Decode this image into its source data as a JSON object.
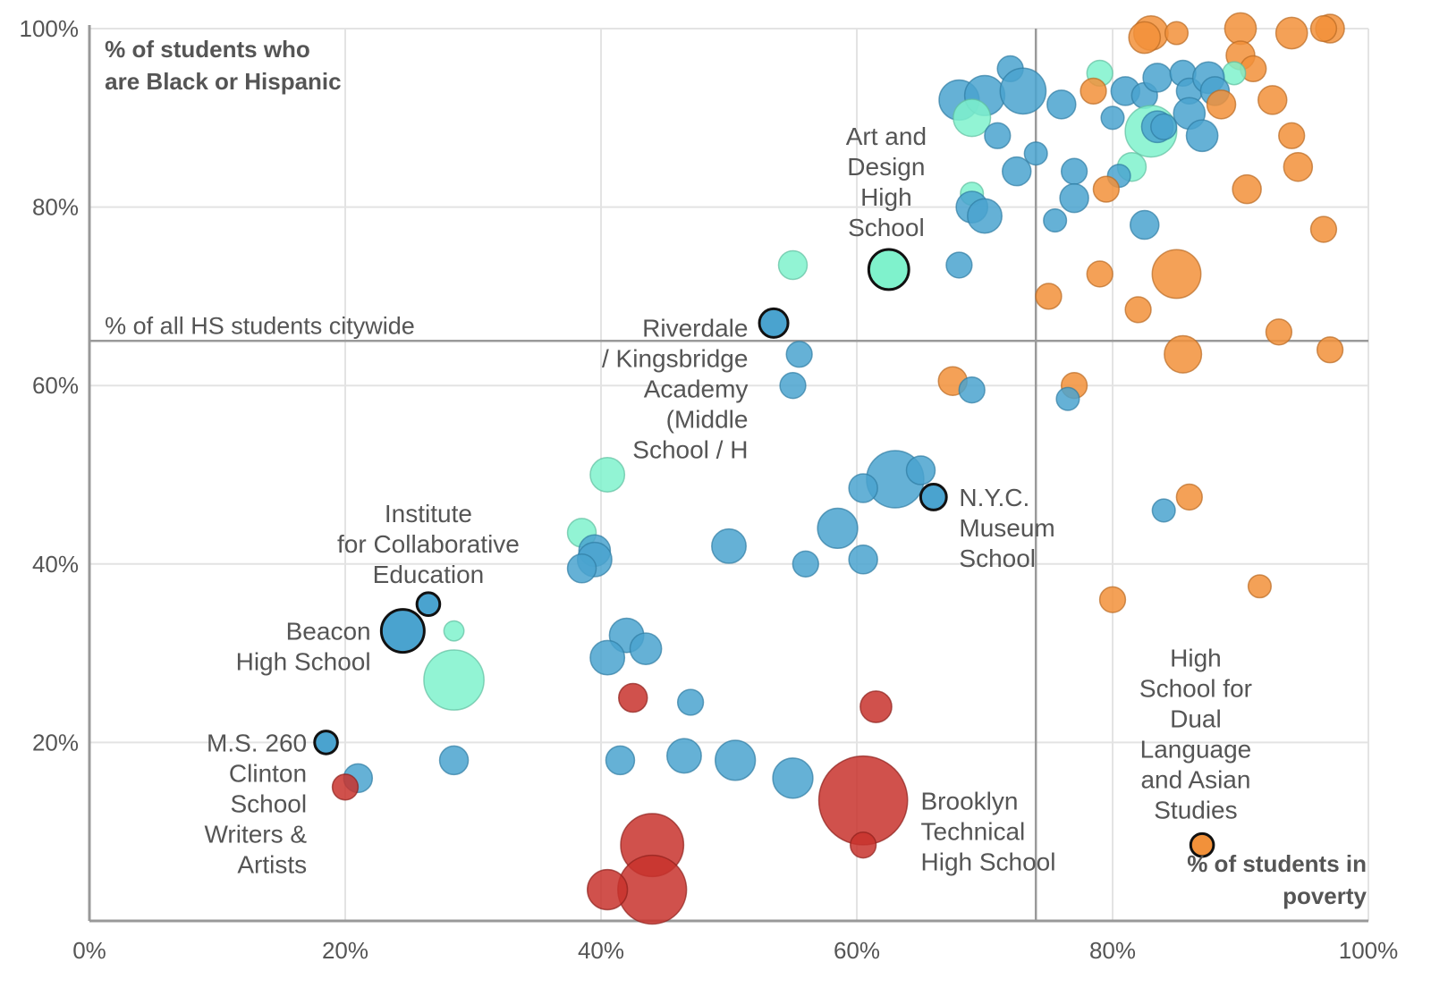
{
  "chart_data": {
    "type": "scatter",
    "xlabel": [
      "% of students in",
      "poverty"
    ],
    "ylabel": [
      "% of students who",
      "are Black or Hispanic"
    ],
    "xlim": [
      0,
      100
    ],
    "ylim": [
      0,
      100
    ],
    "x_ticks": [
      "0%",
      "20%",
      "40%",
      "60%",
      "80%",
      "100%"
    ],
    "y_ticks": [
      "20%",
      "40%",
      "60%",
      "80%",
      "100%"
    ],
    "grid": true,
    "colors": {
      "red": "#c8322d",
      "blue": "#4aa3cf",
      "mint": "#7ff2cc",
      "orange": "#f2913a"
    },
    "reference_lines": [
      {
        "orientation": "horizontal",
        "value": 65,
        "label": "% of all HS students citywide"
      },
      {
        "orientation": "vertical",
        "value": 74,
        "label": ""
      }
    ],
    "points": [
      {
        "x": 97,
        "y": 100,
        "size": 1,
        "color": "orange"
      },
      {
        "x": 90,
        "y": 100,
        "size": 1.1,
        "color": "orange"
      },
      {
        "x": 94,
        "y": 99.5,
        "size": 1.1,
        "color": "orange"
      },
      {
        "x": 83,
        "y": 99.5,
        "size": 1.2,
        "color": "orange"
      },
      {
        "x": 82.5,
        "y": 99,
        "size": 1.1,
        "color": "orange"
      },
      {
        "x": 85,
        "y": 99.5,
        "size": 0.8,
        "color": "orange"
      },
      {
        "x": 96.5,
        "y": 100,
        "size": 0.9,
        "color": "orange"
      },
      {
        "x": 90,
        "y": 97,
        "size": 1,
        "color": "orange"
      },
      {
        "x": 91,
        "y": 95.5,
        "size": 0.9,
        "color": "orange"
      },
      {
        "x": 79,
        "y": 95,
        "size": 0.9,
        "color": "mint"
      },
      {
        "x": 89.5,
        "y": 95,
        "size": 0.8,
        "color": "mint"
      },
      {
        "x": 72,
        "y": 95.5,
        "size": 0.9,
        "color": "blue"
      },
      {
        "x": 68,
        "y": 92,
        "size": 1.4,
        "color": "blue"
      },
      {
        "x": 70,
        "y": 92.5,
        "size": 1.4,
        "color": "blue"
      },
      {
        "x": 73,
        "y": 93,
        "size": 1.6,
        "color": "blue"
      },
      {
        "x": 76,
        "y": 91.5,
        "size": 1,
        "color": "blue"
      },
      {
        "x": 78.5,
        "y": 93,
        "size": 0.9,
        "color": "orange"
      },
      {
        "x": 81,
        "y": 93,
        "size": 1,
        "color": "blue"
      },
      {
        "x": 82.5,
        "y": 92.5,
        "size": 0.9,
        "color": "blue"
      },
      {
        "x": 83.5,
        "y": 94.5,
        "size": 1,
        "color": "blue"
      },
      {
        "x": 85.5,
        "y": 95,
        "size": 0.9,
        "color": "blue"
      },
      {
        "x": 86,
        "y": 93,
        "size": 0.9,
        "color": "blue"
      },
      {
        "x": 87.5,
        "y": 94.5,
        "size": 1.1,
        "color": "blue"
      },
      {
        "x": 88,
        "y": 93,
        "size": 1,
        "color": "blue"
      },
      {
        "x": 88.5,
        "y": 91.5,
        "size": 1,
        "color": "orange"
      },
      {
        "x": 92.5,
        "y": 92,
        "size": 1,
        "color": "orange"
      },
      {
        "x": 69,
        "y": 90,
        "size": 1.3,
        "color": "mint"
      },
      {
        "x": 80,
        "y": 90,
        "size": 0.8,
        "color": "blue"
      },
      {
        "x": 83,
        "y": 88.5,
        "size": 1.8,
        "color": "mint"
      },
      {
        "x": 83.5,
        "y": 89,
        "size": 1.1,
        "color": "blue"
      },
      {
        "x": 84,
        "y": 89,
        "size": 0.9,
        "color": "blue"
      },
      {
        "x": 86,
        "y": 90.5,
        "size": 1.1,
        "color": "blue"
      },
      {
        "x": 87,
        "y": 88,
        "size": 1.1,
        "color": "blue"
      },
      {
        "x": 94,
        "y": 88,
        "size": 0.9,
        "color": "orange"
      },
      {
        "x": 71,
        "y": 88,
        "size": 0.9,
        "color": "blue"
      },
      {
        "x": 74,
        "y": 86,
        "size": 0.8,
        "color": "blue"
      },
      {
        "x": 72.5,
        "y": 84,
        "size": 1,
        "color": "blue"
      },
      {
        "x": 77,
        "y": 84,
        "size": 0.9,
        "color": "blue"
      },
      {
        "x": 81.5,
        "y": 84.5,
        "size": 1,
        "color": "mint"
      },
      {
        "x": 80.5,
        "y": 83.5,
        "size": 0.8,
        "color": "blue"
      },
      {
        "x": 94.5,
        "y": 84.5,
        "size": 1,
        "color": "orange"
      },
      {
        "x": 69,
        "y": 81.5,
        "size": 0.8,
        "color": "mint"
      },
      {
        "x": 69,
        "y": 80,
        "size": 1.1,
        "color": "blue"
      },
      {
        "x": 70,
        "y": 79,
        "size": 1.2,
        "color": "blue"
      },
      {
        "x": 77,
        "y": 81,
        "size": 1,
        "color": "blue"
      },
      {
        "x": 79.5,
        "y": 82,
        "size": 0.9,
        "color": "orange"
      },
      {
        "x": 90.5,
        "y": 82,
        "size": 1,
        "color": "orange"
      },
      {
        "x": 75.5,
        "y": 78.5,
        "size": 0.8,
        "color": "blue"
      },
      {
        "x": 82.5,
        "y": 78,
        "size": 1,
        "color": "blue"
      },
      {
        "x": 96.5,
        "y": 77.5,
        "size": 0.9,
        "color": "orange"
      },
      {
        "x": 55,
        "y": 73.5,
        "size": 1,
        "color": "mint"
      },
      {
        "x": 62.5,
        "y": 73,
        "size": 1.4,
        "color": "mint",
        "highlight": true
      },
      {
        "x": 68,
        "y": 73.5,
        "size": 0.9,
        "color": "blue"
      },
      {
        "x": 79,
        "y": 72.5,
        "size": 0.9,
        "color": "orange"
      },
      {
        "x": 85,
        "y": 72.5,
        "size": 1.7,
        "color": "orange"
      },
      {
        "x": 75,
        "y": 70,
        "size": 0.9,
        "color": "orange"
      },
      {
        "x": 82,
        "y": 68.5,
        "size": 0.9,
        "color": "orange"
      },
      {
        "x": 53.5,
        "y": 67,
        "size": 1,
        "color": "blue",
        "highlight": true
      },
      {
        "x": 55.5,
        "y": 63.5,
        "size": 0.9,
        "color": "blue"
      },
      {
        "x": 93,
        "y": 66,
        "size": 0.9,
        "color": "orange"
      },
      {
        "x": 97,
        "y": 64,
        "size": 0.9,
        "color": "orange"
      },
      {
        "x": 85.5,
        "y": 63.5,
        "size": 1.3,
        "color": "orange"
      },
      {
        "x": 55,
        "y": 60,
        "size": 0.9,
        "color": "blue"
      },
      {
        "x": 67.5,
        "y": 60.5,
        "size": 1,
        "color": "orange"
      },
      {
        "x": 69,
        "y": 59.5,
        "size": 0.9,
        "color": "blue"
      },
      {
        "x": 77,
        "y": 60,
        "size": 0.9,
        "color": "orange"
      },
      {
        "x": 76.5,
        "y": 58.5,
        "size": 0.8,
        "color": "blue"
      },
      {
        "x": 40.5,
        "y": 50,
        "size": 1.2,
        "color": "mint"
      },
      {
        "x": 63,
        "y": 49.5,
        "size": 2,
        "color": "blue"
      },
      {
        "x": 65,
        "y": 50.5,
        "size": 1,
        "color": "blue"
      },
      {
        "x": 60.5,
        "y": 48.5,
        "size": 1,
        "color": "blue"
      },
      {
        "x": 66,
        "y": 47.5,
        "size": 0.9,
        "color": "blue",
        "highlight": true
      },
      {
        "x": 86,
        "y": 47.5,
        "size": 0.9,
        "color": "orange"
      },
      {
        "x": 84,
        "y": 46,
        "size": 0.8,
        "color": "blue"
      },
      {
        "x": 38.5,
        "y": 43.5,
        "size": 1,
        "color": "mint"
      },
      {
        "x": 58.5,
        "y": 44,
        "size": 1.4,
        "color": "blue"
      },
      {
        "x": 39.5,
        "y": 41.5,
        "size": 1.1,
        "color": "blue"
      },
      {
        "x": 39.5,
        "y": 40.5,
        "size": 1.2,
        "color": "blue"
      },
      {
        "x": 50,
        "y": 42,
        "size": 1.2,
        "color": "blue"
      },
      {
        "x": 56,
        "y": 40,
        "size": 0.9,
        "color": "blue"
      },
      {
        "x": 60.5,
        "y": 40.5,
        "size": 1,
        "color": "blue"
      },
      {
        "x": 38.5,
        "y": 39.5,
        "size": 1,
        "color": "blue"
      },
      {
        "x": 80,
        "y": 36,
        "size": 0.9,
        "color": "orange"
      },
      {
        "x": 91.5,
        "y": 37.5,
        "size": 0.8,
        "color": "orange"
      },
      {
        "x": 26.5,
        "y": 35.5,
        "size": 0.8,
        "color": "blue",
        "highlight": true
      },
      {
        "x": 24.5,
        "y": 32.5,
        "size": 1.5,
        "color": "blue",
        "highlight": true
      },
      {
        "x": 28.5,
        "y": 32.5,
        "size": 0.7,
        "color": "mint"
      },
      {
        "x": 42,
        "y": 32,
        "size": 1.2,
        "color": "blue"
      },
      {
        "x": 43.5,
        "y": 30.5,
        "size": 1.1,
        "color": "blue"
      },
      {
        "x": 40.5,
        "y": 29.5,
        "size": 1.2,
        "color": "blue"
      },
      {
        "x": 28.5,
        "y": 27,
        "size": 2.1,
        "color": "mint"
      },
      {
        "x": 42.5,
        "y": 25,
        "size": 1,
        "color": "red"
      },
      {
        "x": 47,
        "y": 24.5,
        "size": 0.9,
        "color": "blue"
      },
      {
        "x": 61.5,
        "y": 24,
        "size": 1.1,
        "color": "red"
      },
      {
        "x": 18.5,
        "y": 20,
        "size": 0.8,
        "color": "blue",
        "highlight": true
      },
      {
        "x": 28.5,
        "y": 18,
        "size": 1,
        "color": "blue"
      },
      {
        "x": 41.5,
        "y": 18,
        "size": 1,
        "color": "blue"
      },
      {
        "x": 46.5,
        "y": 18.5,
        "size": 1.2,
        "color": "blue"
      },
      {
        "x": 50.5,
        "y": 18,
        "size": 1.4,
        "color": "blue"
      },
      {
        "x": 55,
        "y": 16,
        "size": 1.4,
        "color": "blue"
      },
      {
        "x": 21,
        "y": 16,
        "size": 1,
        "color": "blue"
      },
      {
        "x": 20,
        "y": 15,
        "size": 0.9,
        "color": "red"
      },
      {
        "x": 60.5,
        "y": 13.5,
        "size": 3.1,
        "color": "red"
      },
      {
        "x": 60.5,
        "y": 8.5,
        "size": 0.9,
        "color": "red"
      },
      {
        "x": 44,
        "y": 8.5,
        "size": 2.2,
        "color": "red"
      },
      {
        "x": 44,
        "y": 3.5,
        "size": 2.4,
        "color": "red"
      },
      {
        "x": 40.5,
        "y": 3.5,
        "size": 1.4,
        "color": "red"
      },
      {
        "x": 87,
        "y": 8.5,
        "size": 0.8,
        "color": "orange",
        "highlight": true
      }
    ],
    "annotations": [
      {
        "lines": [
          "Art and",
          "Design",
          "High",
          "School"
        ],
        "x": 62.3,
        "anchor": "middle",
        "y_top": 88
      },
      {
        "lines": [
          "Riverdale",
          "/ Kingsbridge",
          "Academy",
          "(Middle",
          "School / H"
        ],
        "x": 51.5,
        "anchor": "end",
        "y_top": 66.5
      },
      {
        "lines": [
          "N.Y.C.",
          "Museum",
          "School"
        ],
        "x": 68,
        "anchor": "start",
        "y_top": 47.5
      },
      {
        "lines": [
          "Institute",
          "for Collaborative",
          "Education"
        ],
        "x": 26.5,
        "anchor": "middle",
        "y_top": 45.7
      },
      {
        "lines": [
          "Beacon",
          "High School"
        ],
        "x": 22,
        "anchor": "end",
        "y_top": 32.5
      },
      {
        "lines": [
          "M.S. 260",
          "Clinton",
          "School",
          "Writers &",
          "Artists"
        ],
        "x": 17,
        "anchor": "end",
        "y_top": 20
      },
      {
        "lines": [
          "Brooklyn",
          "Technical",
          "High School"
        ],
        "x": 65,
        "anchor": "start",
        "y_top": 13.5
      },
      {
        "lines": [
          "High",
          "School for",
          "Dual",
          "Language",
          "and Asian",
          "Studies"
        ],
        "x": 86.5,
        "anchor": "middle",
        "y_top": 29.5
      }
    ]
  }
}
